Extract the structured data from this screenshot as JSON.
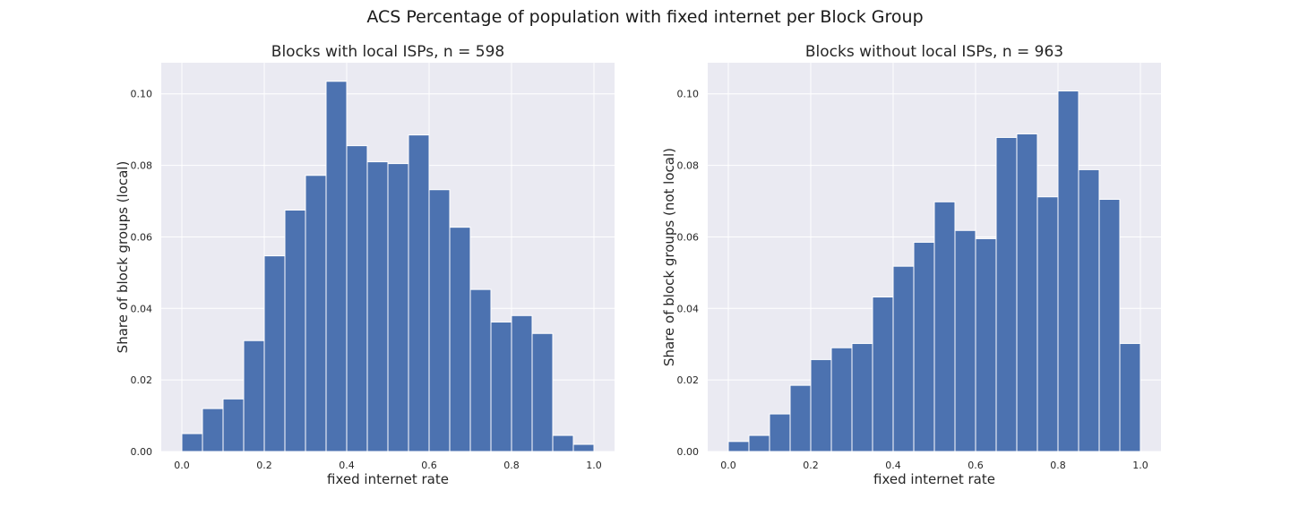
{
  "figure": {
    "suptitle": "ACS Percentage of population with fixed internet per Block Group"
  },
  "chart_data": [
    {
      "type": "bar",
      "title": "Blocks with local ISPs, n = 598",
      "xlabel": "fixed internet rate",
      "ylabel": "Share of block groups (local)",
      "bin_edges": [
        0.0,
        0.05,
        0.1,
        0.15,
        0.2,
        0.25,
        0.3,
        0.35,
        0.4,
        0.45,
        0.5,
        0.55,
        0.6,
        0.65,
        0.7,
        0.75,
        0.8,
        0.85,
        0.9,
        0.95,
        1.0
      ],
      "values": [
        0.005,
        0.012,
        0.0147,
        0.031,
        0.0547,
        0.0675,
        0.0772,
        0.1035,
        0.0855,
        0.081,
        0.0805,
        0.0885,
        0.0732,
        0.0627,
        0.0453,
        0.0362,
        0.038,
        0.033,
        0.0045,
        0.002
      ],
      "xlim": [
        -0.05,
        1.05
      ],
      "ylim": [
        0,
        0.1087
      ],
      "xticks": [
        "0.0",
        "0.2",
        "0.4",
        "0.6",
        "0.8",
        "1.0"
      ],
      "yticks": [
        "0.00",
        "0.02",
        "0.04",
        "0.06",
        "0.08",
        "0.10"
      ],
      "bar_color": "#4c72b0",
      "background": "#eaeaf2",
      "grid": true
    },
    {
      "type": "bar",
      "title": "Blocks without local ISPs, n = 963",
      "xlabel": "fixed internet rate",
      "ylabel": "Share of block groups (not local)",
      "bin_edges": [
        0.0,
        0.05,
        0.1,
        0.15,
        0.2,
        0.25,
        0.3,
        0.35,
        0.4,
        0.45,
        0.5,
        0.55,
        0.6,
        0.65,
        0.7,
        0.75,
        0.8,
        0.85,
        0.9,
        0.95,
        1.0
      ],
      "values": [
        0.0028,
        0.0045,
        0.0105,
        0.0185,
        0.0257,
        0.029,
        0.0302,
        0.0432,
        0.0518,
        0.0585,
        0.0698,
        0.0618,
        0.0595,
        0.0878,
        0.0888,
        0.0712,
        0.1008,
        0.0788,
        0.0705,
        0.0302
      ],
      "xlim": [
        -0.05,
        1.05
      ],
      "ylim": [
        0,
        0.1087
      ],
      "xticks": [
        "0.0",
        "0.2",
        "0.4",
        "0.6",
        "0.8",
        "1.0"
      ],
      "yticks": [
        "0.00",
        "0.02",
        "0.04",
        "0.06",
        "0.08",
        "0.10"
      ],
      "bar_color": "#4c72b0",
      "background": "#eaeaf2",
      "grid": true
    }
  ]
}
